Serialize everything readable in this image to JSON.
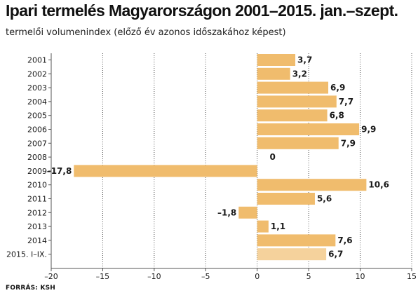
{
  "title": "Ipari termelés Magyarországon 2001–2015. jan.–szept.",
  "subtitle": "termelői volumenindex (előző év azonos időszakához képest)",
  "source": "FORRÁS: KSH",
  "colors": {
    "bar": "#f0bc6d",
    "bar_highlight": "#f5d29c",
    "grid": "#555555",
    "axis": "#555555",
    "text": "#1a1a1a"
  },
  "chart_data": {
    "type": "bar",
    "orientation": "horizontal",
    "categories": [
      "2001",
      "2002",
      "2003",
      "2004",
      "2005",
      "2006",
      "2007",
      "2008",
      "2009",
      "2010",
      "2011",
      "2012",
      "2013",
      "2014",
      "2015. I–IX."
    ],
    "values": [
      3.7,
      3.2,
      6.9,
      7.7,
      6.8,
      9.9,
      7.9,
      0,
      -17.8,
      10.6,
      5.6,
      -1.8,
      1.1,
      7.6,
      6.7
    ],
    "value_labels": [
      "3,7",
      "3,2",
      "6,9",
      "7,7",
      "6,8",
      "9,9",
      "7,9",
      "0",
      "–17,8",
      "10,6",
      "5,6",
      "–1,8",
      "1,1",
      "7,6",
      "6,7"
    ],
    "xlim": [
      -20,
      15
    ],
    "xticks": [
      -20,
      -15,
      -10,
      -5,
      0,
      5,
      10,
      15
    ],
    "xtick_labels": [
      "–20",
      "–15",
      "–10",
      "–5",
      "0",
      "5",
      "10",
      "15"
    ],
    "highlight_index": 14,
    "grid": "vertical dotted"
  }
}
